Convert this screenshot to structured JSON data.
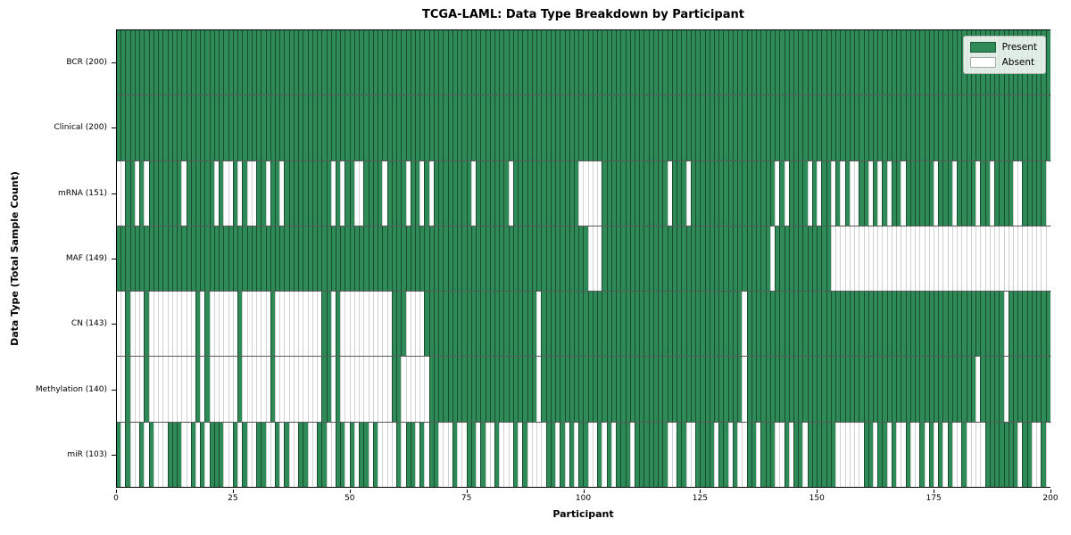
{
  "figure": {
    "title": "TCGA-LAML: Data Type Breakdown by Participant",
    "xlabel": "Participant",
    "ylabel": "Data Type (Total Sample Count)"
  },
  "legend": {
    "position": "upper right",
    "items": [
      {
        "label": "Present",
        "color": "#2e8b57"
      },
      {
        "label": "Absent",
        "color": "#ffffff"
      }
    ]
  },
  "colors": {
    "present": "#2e8b57",
    "absent": "#ffffff",
    "plot_border": "#000000"
  },
  "chart_data": {
    "type": "heatmap",
    "title": "TCGA-LAML: Data Type Breakdown by Participant",
    "xlabel": "Participant",
    "ylabel": "Data Type (Total Sample Count)",
    "x_range": [
      0,
      200
    ],
    "n_participants": 200,
    "x_ticks": [
      0,
      25,
      50,
      75,
      100,
      125,
      150,
      175,
      200
    ],
    "grid": false,
    "legend_entries": [
      "Present",
      "Absent"
    ],
    "legend_position": "upper right",
    "rows": [
      {
        "label": "BCR (200)",
        "data_type": "BCR",
        "present_count": 200,
        "absent_indices": []
      },
      {
        "label": "Clinical (200)",
        "data_type": "Clinical",
        "present_count": 200,
        "absent_indices": []
      },
      {
        "label": "mRNA (151)",
        "data_type": "mRNA",
        "present_count": 151,
        "absent_indices": [
          0,
          1,
          4,
          6,
          14,
          21,
          23,
          24,
          26,
          28,
          29,
          32,
          35,
          46,
          48,
          51,
          52,
          57,
          62,
          65,
          67,
          76,
          84,
          99,
          100,
          101,
          102,
          103,
          118,
          122,
          141,
          143,
          148,
          150,
          153,
          155,
          157,
          158,
          161,
          163,
          165,
          168,
          175,
          179,
          184,
          187,
          192,
          193,
          199
        ]
      },
      {
        "label": "MAF (149)",
        "data_type": "MAF",
        "present_count": 149,
        "absent_indices": [
          101,
          102,
          103,
          140,
          153,
          154,
          155,
          156,
          157,
          158,
          159,
          160,
          161,
          162,
          163,
          164,
          165,
          166,
          167,
          168,
          169,
          170,
          171,
          172,
          173,
          174,
          175,
          176,
          177,
          178,
          179,
          180,
          181,
          182,
          183,
          184,
          185,
          186,
          187,
          188,
          189,
          190,
          191,
          192,
          193,
          194,
          195,
          196,
          197,
          198,
          199
        ]
      },
      {
        "label": "CN (143)",
        "data_type": "CN",
        "present_count": 143,
        "absent_indices": [
          0,
          1,
          3,
          4,
          5,
          7,
          8,
          9,
          10,
          11,
          12,
          13,
          14,
          15,
          16,
          18,
          20,
          21,
          22,
          23,
          24,
          25,
          27,
          28,
          29,
          30,
          31,
          32,
          34,
          35,
          36,
          37,
          38,
          39,
          40,
          41,
          42,
          43,
          46,
          48,
          49,
          50,
          51,
          52,
          53,
          54,
          55,
          56,
          57,
          58,
          62,
          63,
          64,
          65,
          90,
          134,
          190
        ]
      },
      {
        "label": "Methylation (140)",
        "data_type": "Methylation",
        "present_count": 140,
        "absent_indices": [
          0,
          1,
          3,
          4,
          5,
          7,
          8,
          9,
          10,
          11,
          12,
          13,
          14,
          15,
          16,
          18,
          20,
          21,
          22,
          23,
          24,
          25,
          27,
          28,
          29,
          30,
          31,
          32,
          34,
          35,
          36,
          37,
          38,
          39,
          40,
          41,
          42,
          43,
          46,
          48,
          49,
          50,
          51,
          52,
          53,
          54,
          55,
          56,
          57,
          58,
          61,
          62,
          63,
          64,
          65,
          66,
          90,
          134,
          184,
          190
        ]
      },
      {
        "label": "miR (103)",
        "data_type": "miR",
        "present_count": 103,
        "absent_indices": [
          1,
          3,
          4,
          6,
          8,
          9,
          10,
          14,
          15,
          17,
          19,
          23,
          24,
          26,
          28,
          29,
          32,
          33,
          35,
          37,
          38,
          41,
          42,
          45,
          46,
          49,
          51,
          54,
          56,
          57,
          58,
          59,
          61,
          64,
          66,
          69,
          70,
          71,
          73,
          74,
          77,
          79,
          80,
          82,
          83,
          84,
          86,
          88,
          89,
          90,
          91,
          94,
          96,
          98,
          101,
          102,
          104,
          106,
          110,
          118,
          119,
          122,
          123,
          128,
          131,
          133,
          134,
          137,
          141,
          142,
          144,
          147,
          154,
          155,
          156,
          157,
          158,
          159,
          162,
          165,
          167,
          168,
          170,
          171,
          173,
          175,
          177,
          179,
          180,
          182,
          183,
          184,
          185,
          193,
          196,
          197,
          199
        ]
      }
    ]
  }
}
